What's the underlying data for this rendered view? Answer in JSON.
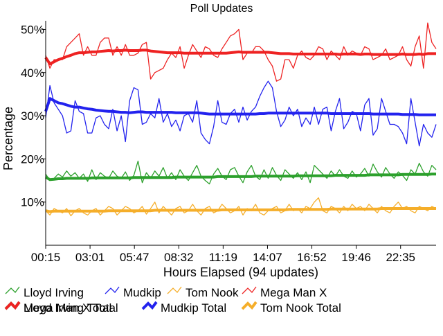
{
  "chart_data": {
    "type": "line",
    "title": "Poll Updates",
    "xlabel": "Hours Elapsed (94 updates)",
    "ylabel": "Percentage",
    "x_ticks": [
      "00:15",
      "03:01",
      "05:47",
      "08:32",
      "11:19",
      "14:07",
      "16:52",
      "19:46",
      "22:35"
    ],
    "y_ticks": [
      "10%",
      "20%",
      "30%",
      "40%",
      "50%"
    ],
    "ylim": [
      0,
      52
    ],
    "grid": false,
    "legend_position": "bottom",
    "n_updates": 94,
    "series": [
      {
        "name": "Lloyd Irving",
        "kind": "update",
        "color": "#2ca02c",
        "values": [
          16.5,
          15.0,
          15.5,
          16.5,
          15.8,
          17.2,
          16.0,
          16.8,
          15.5,
          16.5,
          14.8,
          17.5,
          15.2,
          16.8,
          16.0,
          15.5,
          17.2,
          16.0,
          15.5,
          17.0,
          15.0,
          16.2,
          19.5,
          14.5,
          16.8,
          15.5,
          17.2,
          16.0,
          18.0,
          15.5,
          16.8,
          15.2,
          17.5,
          16.0,
          15.0,
          16.8,
          18.5,
          16.0,
          15.0,
          14.2,
          16.5,
          17.8,
          16.0,
          15.2,
          17.5,
          18.0,
          16.0,
          14.5,
          17.0,
          18.5,
          16.0,
          15.2,
          17.5,
          15.5,
          18.0,
          16.2,
          15.0,
          17.5,
          16.5,
          15.5,
          16.8,
          15.2,
          17.0,
          14.5,
          18.5,
          17.5,
          16.5,
          15.5,
          17.2,
          16.0,
          17.5,
          16.0,
          15.5,
          17.2,
          15.8,
          16.5,
          17.8,
          16.0,
          18.8,
          17.0,
          15.8,
          18.0,
          16.5,
          15.5,
          17.0,
          16.2,
          15.0,
          17.5,
          16.5,
          19.0,
          17.0,
          16.0,
          18.5,
          17.5
        ]
      },
      {
        "name": "Mudkip",
        "kind": "update",
        "color": "#2222ee",
        "values": [
          29.5,
          37.0,
          33.0,
          31.5,
          30.0,
          26.0,
          26.5,
          33.5,
          31.0,
          30.5,
          26.0,
          26.0,
          29.5,
          30.0,
          28.0,
          27.0,
          31.5,
          26.5,
          30.0,
          24.0,
          33.5,
          36.5,
          36.0,
          28.0,
          28.5,
          30.5,
          29.5,
          34.0,
          28.5,
          30.5,
          27.5,
          29.0,
          26.5,
          30.0,
          30.5,
          28.5,
          33.5,
          26.0,
          24.5,
          23.5,
          27.5,
          33.5,
          28.5,
          28.0,
          30.5,
          31.5,
          28.5,
          32.0,
          29.0,
          31.0,
          32.0,
          34.5,
          36.5,
          38.0,
          36.5,
          31.0,
          27.5,
          29.0,
          32.0,
          30.0,
          31.5,
          27.5,
          29.5,
          28.0,
          32.0,
          28.0,
          31.5,
          32.0,
          26.5,
          31.0,
          34.0,
          27.0,
          28.5,
          31.0,
          30.5,
          26.5,
          32.5,
          34.0,
          25.5,
          27.0,
          34.0,
          31.0,
          28.0,
          28.0,
          27.5,
          26.0,
          23.5,
          34.0,
          28.5,
          23.0,
          28.0,
          26.0,
          25.0,
          28.0
        ]
      },
      {
        "name": "Tom Nook",
        "kind": "update",
        "color": "#f5ae2a",
        "values": [
          8.0,
          7.0,
          8.5,
          8.0,
          7.5,
          8.5,
          6.8,
          8.0,
          8.5,
          7.5,
          7.0,
          8.0,
          8.5,
          7.0,
          8.0,
          9.0,
          8.5,
          7.0,
          8.0,
          9.0,
          8.5,
          7.5,
          8.0,
          9.0,
          7.2,
          8.5,
          10.0,
          7.5,
          9.0,
          8.0,
          7.0,
          8.5,
          9.0,
          7.5,
          8.0,
          9.5,
          8.0,
          7.0,
          8.5,
          9.0,
          7.5,
          8.0,
          9.5,
          8.5,
          7.5,
          8.0,
          9.0,
          7.0,
          8.5,
          8.0,
          9.5,
          7.5,
          7.0,
          8.0,
          8.5,
          9.0,
          7.5,
          8.0,
          9.5,
          8.0,
          8.5,
          7.5,
          9.0,
          8.5,
          10.0,
          11.0,
          8.0,
          7.5,
          9.0,
          8.5,
          7.5,
          9.0,
          8.0,
          9.5,
          8.5,
          9.0,
          8.0,
          9.5,
          8.5,
          7.5,
          9.0,
          8.0,
          7.5,
          9.0,
          10.0,
          8.5,
          9.0,
          8.0,
          7.5,
          9.0,
          8.5,
          8.0,
          9.0,
          8.5
        ]
      },
      {
        "name": "Mega Man X",
        "kind": "update",
        "color": "#ee2222",
        "values": [
          44.0,
          41.0,
          43.0,
          43.0,
          43.0,
          46.0,
          47.0,
          48.0,
          49.0,
          44.0,
          46.0,
          44.0,
          44.0,
          47.0,
          48.0,
          48.0,
          44.0,
          46.0,
          44.0,
          46.5,
          44.0,
          44.0,
          44.5,
          46.5,
          47.0,
          38.5,
          40.0,
          40.5,
          41.0,
          43.0,
          44.5,
          43.5,
          46.0,
          41.0,
          44.0,
          46.5,
          45.0,
          43.5,
          46.0,
          45.5,
          44.0,
          43.5,
          45.5,
          47.0,
          48.5,
          49.0,
          50.0,
          43.0,
          44.5,
          44.5,
          46.0,
          46.0,
          45.0,
          43.0,
          41.5,
          38.0,
          38.5,
          43.0,
          43.0,
          41.0,
          44.0,
          45.0,
          43.5,
          43.0,
          44.0,
          46.0,
          45.5,
          43.0,
          45.0,
          44.0,
          43.0,
          46.0,
          44.0,
          45.0,
          44.5,
          44.0,
          46.0,
          45.5,
          43.0,
          43.5,
          44.0,
          45.5,
          43.0,
          43.5,
          44.0,
          46.0,
          43.0,
          41.5,
          46.0,
          48.5,
          41.0,
          51.5,
          47.0,
          45.5
        ]
      },
      {
        "name": "Lloyd Irving Total",
        "kind": "total",
        "color": "#2ca02c",
        "values": [
          15.8,
          15.2,
          15.3,
          15.4,
          15.4,
          15.5,
          15.5,
          15.5,
          15.5,
          15.5,
          15.5,
          15.6,
          15.6,
          15.6,
          15.6,
          15.6,
          15.6,
          15.6,
          15.6,
          15.6,
          15.6,
          15.7,
          15.7,
          15.7,
          15.7,
          15.7,
          15.7,
          15.7,
          15.7,
          15.7,
          15.7,
          15.8,
          15.8,
          15.8,
          15.8,
          15.8,
          15.8,
          15.8,
          15.8,
          15.8,
          15.8,
          15.9,
          15.9,
          15.9,
          15.9,
          15.9,
          15.9,
          15.9,
          15.9,
          15.9,
          16.0,
          16.0,
          16.0,
          16.0,
          16.0,
          16.0,
          16.0,
          16.0,
          16.0,
          16.0,
          16.1,
          16.1,
          16.1,
          16.1,
          16.1,
          16.1,
          16.1,
          16.1,
          16.1,
          16.2,
          16.2,
          16.2,
          16.2,
          16.2,
          16.2,
          16.2,
          16.2,
          16.3,
          16.3,
          16.3,
          16.3,
          16.3,
          16.3,
          16.3,
          16.3,
          16.4,
          16.4,
          16.4,
          16.4,
          16.4,
          16.4,
          16.4,
          16.5,
          16.5
        ]
      },
      {
        "name": "Mudkip Total",
        "kind": "total",
        "color": "#2222ee",
        "values": [
          31.0,
          34.0,
          33.5,
          33.0,
          32.8,
          32.5,
          32.2,
          32.0,
          32.0,
          31.8,
          31.6,
          31.5,
          31.3,
          31.2,
          31.1,
          31.0,
          31.0,
          30.9,
          30.8,
          30.8,
          30.7,
          30.8,
          30.9,
          30.9,
          30.8,
          30.8,
          30.8,
          30.8,
          30.8,
          30.8,
          30.8,
          30.7,
          30.7,
          30.7,
          30.7,
          30.7,
          30.7,
          30.6,
          30.5,
          30.4,
          30.4,
          30.4,
          30.4,
          30.4,
          30.4,
          30.4,
          30.4,
          30.4,
          30.4,
          30.4,
          30.4,
          30.5,
          30.5,
          30.6,
          30.6,
          30.6,
          30.6,
          30.6,
          30.6,
          30.6,
          30.6,
          30.6,
          30.6,
          30.6,
          30.6,
          30.6,
          30.6,
          30.6,
          30.5,
          30.5,
          30.5,
          30.5,
          30.5,
          30.5,
          30.5,
          30.5,
          30.5,
          30.5,
          30.4,
          30.4,
          30.4,
          30.4,
          30.4,
          30.4,
          30.4,
          30.3,
          30.3,
          30.3,
          30.3,
          30.2,
          30.2,
          30.2,
          30.2,
          30.2
        ]
      },
      {
        "name": "Tom Nook Total",
        "kind": "total",
        "color": "#f5ae2a",
        "values": [
          8.0,
          7.8,
          7.9,
          7.9,
          7.9,
          7.9,
          7.9,
          7.9,
          7.9,
          7.9,
          7.9,
          7.9,
          7.9,
          7.9,
          7.9,
          8.0,
          8.0,
          8.0,
          8.0,
          8.0,
          8.0,
          8.0,
          8.0,
          8.0,
          8.0,
          8.0,
          8.1,
          8.1,
          8.1,
          8.1,
          8.1,
          8.1,
          8.1,
          8.1,
          8.1,
          8.1,
          8.1,
          8.1,
          8.1,
          8.1,
          8.1,
          8.1,
          8.2,
          8.2,
          8.2,
          8.2,
          8.2,
          8.2,
          8.2,
          8.2,
          8.2,
          8.2,
          8.2,
          8.2,
          8.2,
          8.2,
          8.2,
          8.2,
          8.3,
          8.3,
          8.3,
          8.3,
          8.3,
          8.3,
          8.3,
          8.3,
          8.3,
          8.3,
          8.4,
          8.4,
          8.4,
          8.4,
          8.4,
          8.4,
          8.4,
          8.4,
          8.4,
          8.4,
          8.4,
          8.4,
          8.5,
          8.5,
          8.5,
          8.5,
          8.5,
          8.5,
          8.5,
          8.5,
          8.5,
          8.5,
          8.5,
          8.5,
          8.5,
          8.5
        ]
      },
      {
        "name": "Mega Man X Total",
        "kind": "total",
        "color": "#ee2222",
        "values": [
          43.5,
          42.0,
          42.5,
          43.0,
          43.3,
          43.7,
          44.0,
          44.4,
          44.6,
          44.6,
          44.7,
          44.8,
          44.8,
          44.9,
          45.0,
          45.1,
          45.0,
          45.1,
          45.1,
          45.2,
          45.1,
          45.1,
          45.1,
          45.2,
          45.2,
          45.0,
          44.9,
          44.8,
          44.7,
          44.6,
          44.6,
          44.6,
          44.6,
          44.5,
          44.5,
          44.5,
          44.5,
          44.5,
          44.5,
          44.5,
          44.5,
          44.5,
          44.5,
          44.5,
          44.6,
          44.7,
          44.8,
          44.7,
          44.7,
          44.7,
          44.7,
          44.7,
          44.7,
          44.7,
          44.6,
          44.5,
          44.4,
          44.4,
          44.4,
          44.3,
          44.3,
          44.3,
          44.3,
          44.3,
          44.3,
          44.3,
          44.3,
          44.3,
          44.3,
          44.3,
          44.2,
          44.3,
          44.3,
          44.3,
          44.3,
          44.2,
          44.3,
          44.3,
          44.2,
          44.2,
          44.2,
          44.2,
          44.2,
          44.2,
          44.2,
          44.3,
          44.2,
          44.2,
          44.2,
          44.3,
          44.2,
          44.4,
          44.4,
          44.4
        ]
      }
    ]
  }
}
